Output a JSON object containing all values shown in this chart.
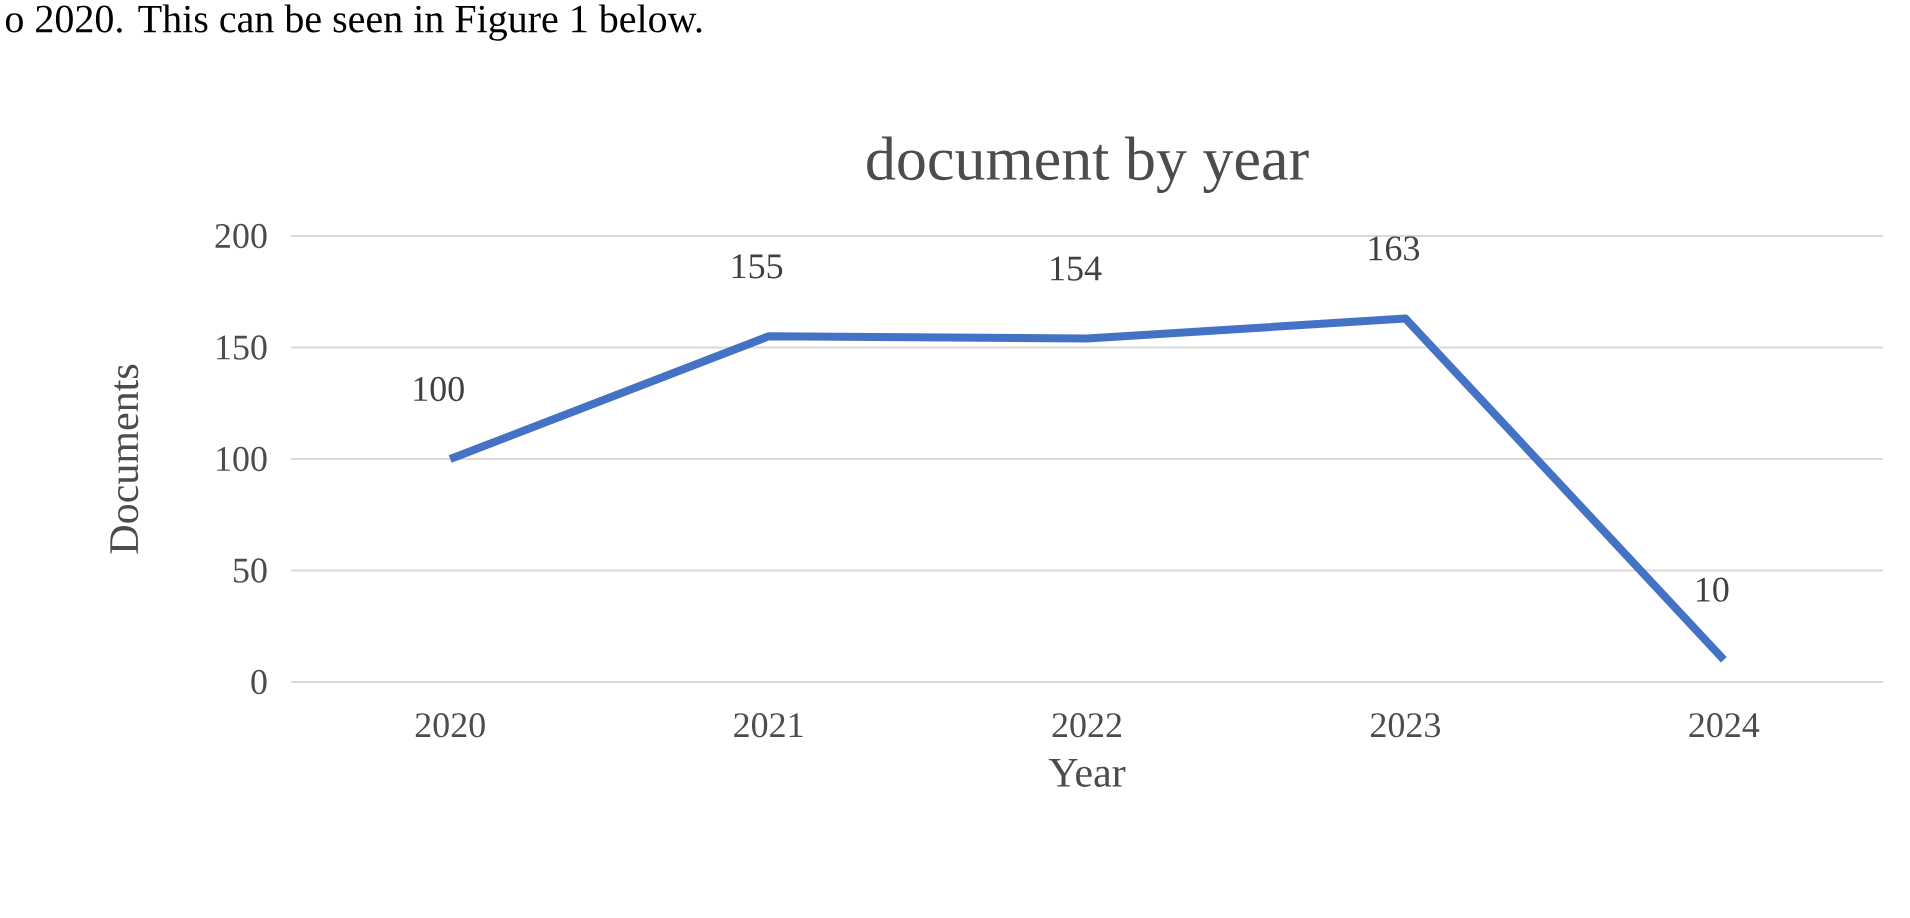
{
  "chart_data": {
    "type": "line",
    "title": "document by year",
    "xlabel": "Year",
    "ylabel": "Documents",
    "categories": [
      "2020",
      "2021",
      "2022",
      "2023",
      "2024"
    ],
    "values": [
      100,
      155,
      154,
      163,
      10
    ],
    "color": "#4472c4",
    "ylim": [
      0,
      200
    ],
    "yticks": [
      0,
      50,
      100,
      150,
      200
    ],
    "grid": "y",
    "data_labels": true,
    "annotations": [
      "o 2020. This can be seen in Figure 1 below."
    ]
  }
}
